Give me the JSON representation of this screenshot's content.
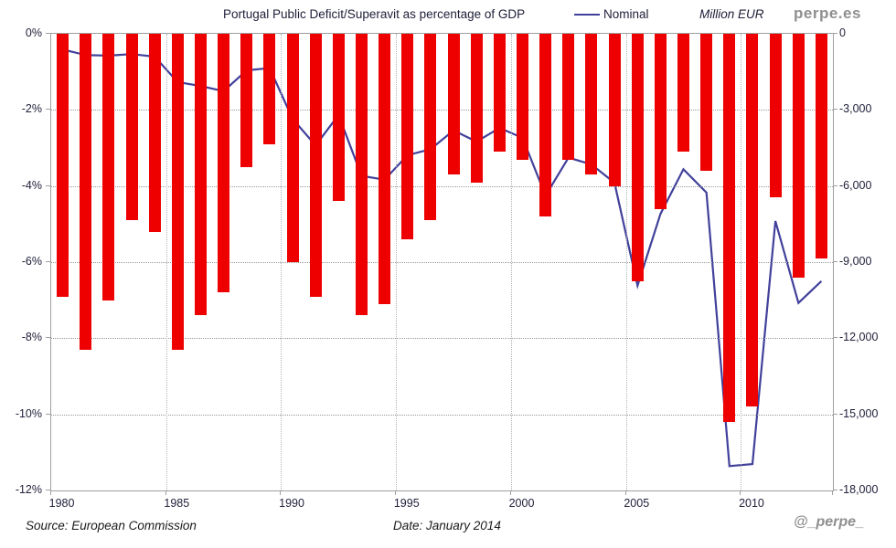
{
  "header": {
    "title": "Portugal Public Deficit/Superavit as percentage of GDP",
    "legend_label": "Nominal",
    "units_label": "Million EUR",
    "brand": "perpe.es"
  },
  "footer": {
    "source": "Source: European Commission",
    "date": "Date: January 2014",
    "handle": "@_perpe_"
  },
  "colors": {
    "bar": "#ee0000",
    "line": "#41419b",
    "grid_dotted": "#979797",
    "axis_text": "#21213c",
    "brand_gray": "#8f8f8f"
  },
  "chart_data": {
    "type": "bar",
    "title": "Portugal Public Deficit/Superavit as percentage of GDP",
    "categories": [
      1980,
      1981,
      1982,
      1983,
      1984,
      1985,
      1986,
      1987,
      1988,
      1989,
      1990,
      1991,
      1992,
      1993,
      1994,
      1995,
      1996,
      1997,
      1998,
      1999,
      2000,
      2001,
      2002,
      2003,
      2004,
      2005,
      2006,
      2007,
      2008,
      2009,
      2010,
      2011,
      2012,
      2013
    ],
    "series": [
      {
        "name": "Deficit/Superavit (% of GDP)",
        "type": "bar",
        "axis": "left",
        "values": [
          -6.9,
          -8.3,
          -7.0,
          -4.9,
          -5.2,
          -8.3,
          -7.4,
          -6.8,
          -3.5,
          -2.9,
          -6.0,
          -6.9,
          -4.4,
          -7.4,
          -7.1,
          -5.4,
          -4.9,
          -3.7,
          -3.9,
          -3.1,
          -3.3,
          -4.8,
          -3.3,
          -3.7,
          -4.0,
          -6.5,
          -4.6,
          -3.1,
          -3.6,
          -10.2,
          -9.8,
          -4.3,
          -6.4,
          -5.9
        ]
      },
      {
        "name": "Nominal",
        "type": "line",
        "axis": "right",
        "values": [
          -620,
          -840,
          -860,
          -800,
          -900,
          -1900,
          -2060,
          -2260,
          -1440,
          -1350,
          -3350,
          -4400,
          -3200,
          -5600,
          -5750,
          -4780,
          -4550,
          -3810,
          -4250,
          -3710,
          -4100,
          -6380,
          -4880,
          -5150,
          -5870,
          -9930,
          -7100,
          -5340,
          -6260,
          -17040,
          -16960,
          -7380,
          -10610,
          -9750
        ]
      }
    ],
    "left_axis": {
      "label": "",
      "ticks": [
        "0%",
        "-2%",
        "-4%",
        "-6%",
        "-8%",
        "-10%",
        "-12%"
      ],
      "range": [
        0,
        -12
      ],
      "grid": true
    },
    "right_axis": {
      "label": "Million EUR",
      "ticks": [
        "0",
        "-3,000",
        "-6,000",
        "-9,000",
        "-12,000",
        "-15,000",
        "-18,000"
      ],
      "range": [
        0,
        -18000
      ]
    },
    "x_axis": {
      "tick_labels": [
        "1980",
        "1985",
        "1990",
        "1995",
        "2000",
        "2005",
        "2010"
      ],
      "tick_years": [
        1980,
        1985,
        1990,
        1995,
        2000,
        2005,
        2010
      ],
      "gridline_years": [
        1985,
        1990,
        1995,
        2000,
        2005,
        2010
      ]
    },
    "legend_position": "top"
  }
}
